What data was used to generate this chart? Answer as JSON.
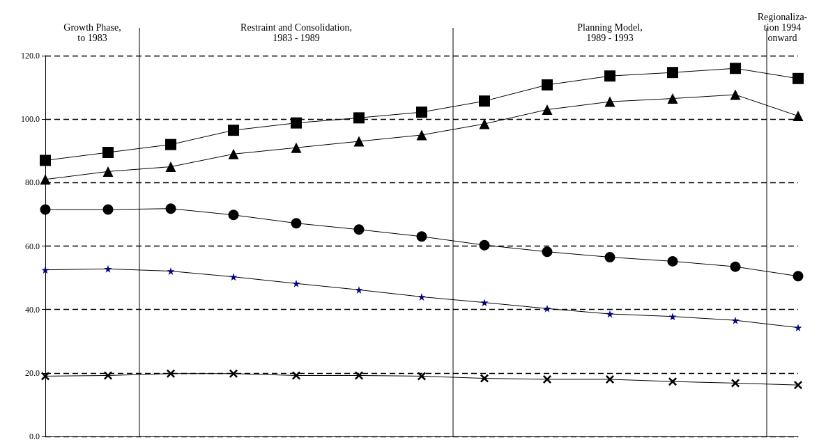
{
  "chart_data": {
    "type": "line",
    "categories": [
      null,
      null,
      null,
      null,
      null,
      null,
      null,
      null,
      null,
      null,
      null,
      null,
      null
    ],
    "tick_labels": "y",
    "ylim": [
      0,
      120
    ],
    "yticks": [
      {
        "value": 0,
        "label": "0.0"
      },
      {
        "value": 20,
        "label": "20.0"
      },
      {
        "value": 40,
        "label": "40.0"
      },
      {
        "value": 60,
        "label": "60.0"
      },
      {
        "value": 80,
        "label": "80.0"
      },
      {
        "value": 100,
        "label": "100.0"
      },
      {
        "value": 120,
        "label": "120.0"
      }
    ],
    "grid": "y",
    "line_style": "solid",
    "series": [
      {
        "color": "#000000",
        "marker": "square",
        "values": [
          87,
          89.5,
          92,
          96.5,
          98.8,
          100.4,
          102.2,
          105.7,
          110.8,
          113.6,
          114.7,
          116,
          112.8
        ]
      },
      {
        "color": "#000000",
        "marker": "triangle",
        "values": [
          81,
          83.5,
          85,
          89,
          91,
          93,
          95,
          98.5,
          103,
          105.5,
          106.5,
          107.7,
          101
        ]
      },
      {
        "color": "#000000",
        "marker": "circle",
        "values": [
          71.5,
          71.5,
          71.8,
          69.8,
          67.2,
          65.2,
          63,
          60.3,
          58.2,
          56.5,
          55.2,
          53.5,
          50.5
        ]
      },
      {
        "color": "#000080",
        "marker": "star",
        "values": [
          52.5,
          52.8,
          52.1,
          50.3,
          48.2,
          46.2,
          44,
          42.2,
          40.3,
          38.6,
          37.8,
          36.6,
          34.3
        ]
      },
      {
        "color": "#000000",
        "marker": "cross",
        "values": [
          19,
          19.2,
          19.8,
          19.8,
          19.2,
          19.2,
          19,
          18.3,
          18,
          18,
          17.3,
          16.8,
          16.2
        ]
      }
    ],
    "annotations": [
      "Growth Phase,\nto 1983",
      "Restraint and Consolidation,\n1983 - 1989",
      "Planning Model,\n1989 - 1993",
      "Regionaliza-\ntion 1994\nonward"
    ]
  }
}
